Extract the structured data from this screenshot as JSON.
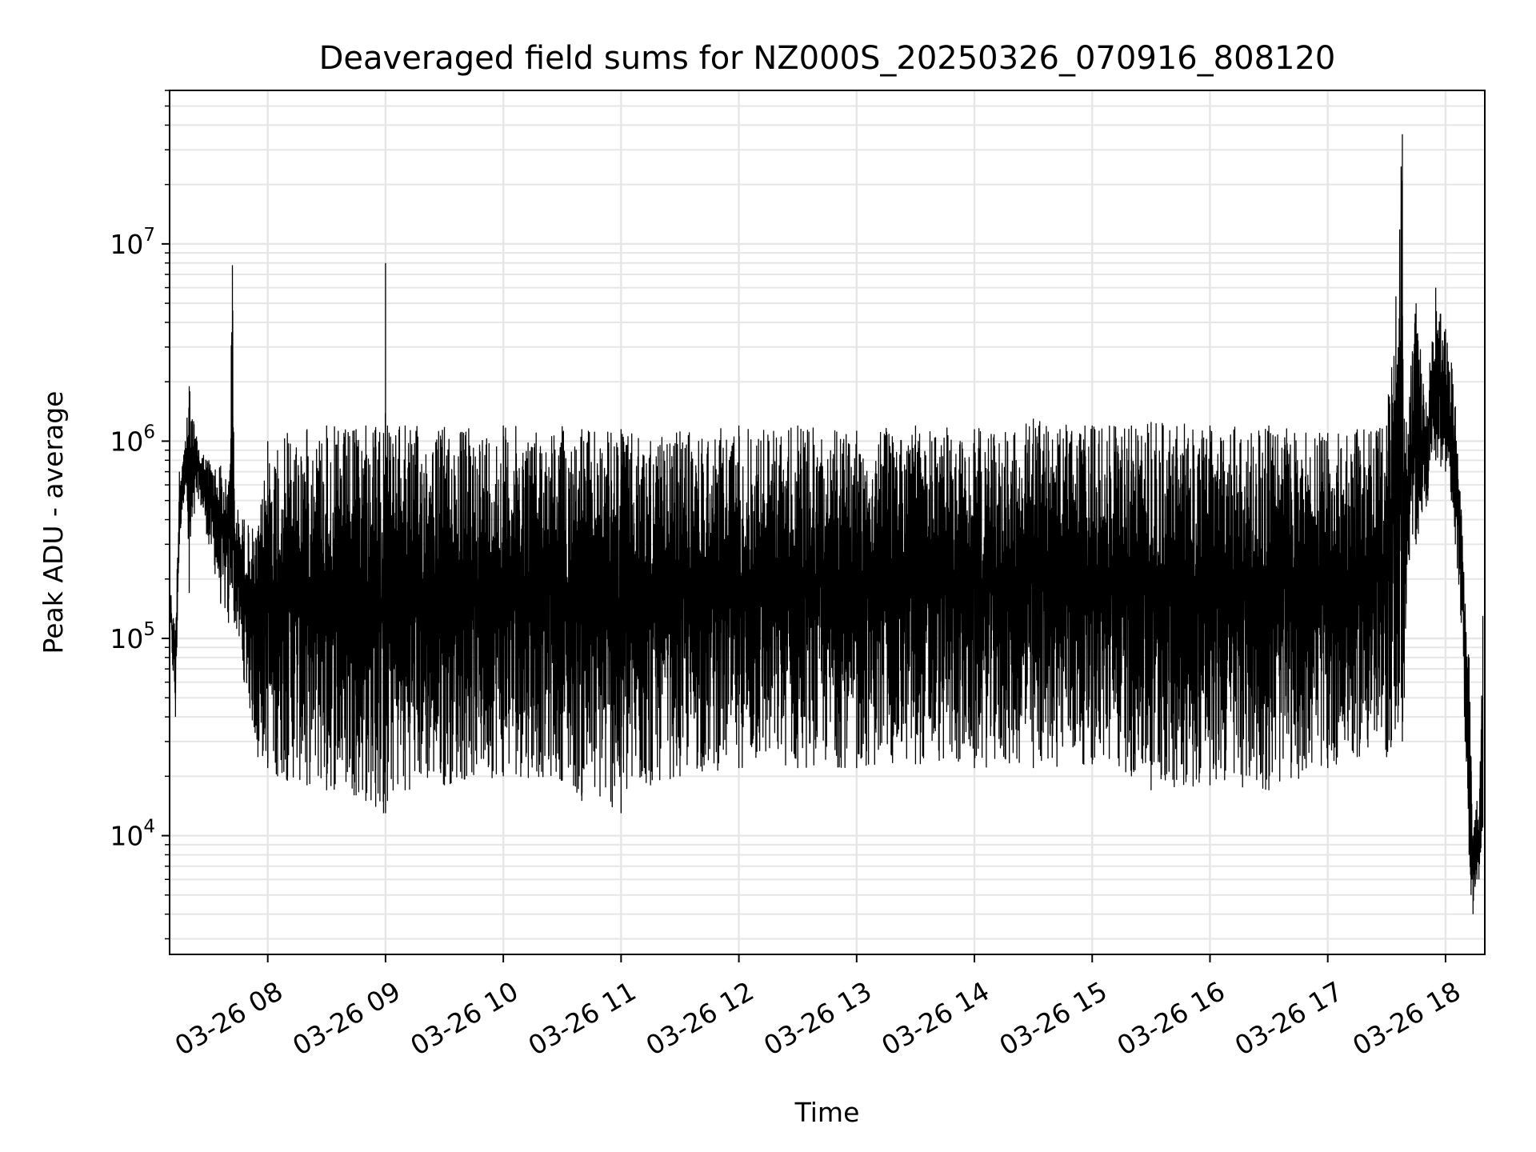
{
  "chart_data": {
    "type": "line",
    "title": "Deaveraged field sums for NZ000S_20250326_070916_808120",
    "xlabel": "Time",
    "ylabel": "Peak ADU - average",
    "yscale": "log",
    "xlim": [
      "2025-03-26 07:10",
      "2025-03-26 18:20"
    ],
    "ylim": [
      2500,
      60000000
    ],
    "grid": true,
    "line_color": "#000000",
    "x_tick_labels": [
      "03-26 08",
      "03-26 09",
      "03-26 10",
      "03-26 11",
      "03-26 12",
      "03-26 13",
      "03-26 14",
      "03-26 15",
      "03-26 16",
      "03-26 17",
      "03-26 18"
    ],
    "y_tick_labels": [
      {
        "base": "10",
        "exp": "4",
        "value": 10000
      },
      {
        "base": "10",
        "exp": "5",
        "value": 100000
      },
      {
        "base": "10",
        "exp": "6",
        "value": 1000000
      },
      {
        "base": "10",
        "exp": "7",
        "value": 10000000
      }
    ],
    "series": [
      {
        "x": [
          "07:10",
          "07:13",
          "07:15",
          "07:18",
          "07:20",
          "07:24",
          "07:30",
          "07:36",
          "07:40",
          "07:42",
          "07:43",
          "07:48",
          "07:55",
          "08:00",
          "08:05",
          "08:10",
          "08:20",
          "08:30",
          "08:45",
          "08:50",
          "08:55",
          "08:59",
          "09:00",
          "09:01",
          "09:10",
          "09:30",
          "10:00",
          "10:30",
          "10:40",
          "11:00",
          "11:15",
          "11:30",
          "12:00",
          "12:30",
          "13:00",
          "13:30",
          "14:00",
          "14:30",
          "15:00",
          "15:20",
          "15:30",
          "16:00",
          "16:30",
          "17:00",
          "17:15",
          "17:30",
          "17:38",
          "17:39",
          "17:40",
          "17:45",
          "17:51",
          "17:52",
          "17:55",
          "18:00",
          "18:03",
          "18:05",
          "18:08",
          "18:10",
          "18:12",
          "18:13",
          "18:14",
          "18:15",
          "18:16",
          "18:17",
          "18:19"
        ],
        "upper": [
          200000,
          110000,
          700000,
          1000000,
          1900000,
          1000000,
          800000,
          750000,
          600000,
          7800000,
          500000,
          400000,
          350000,
          1000000,
          900000,
          1100000,
          1150000,
          1200000,
          1150000,
          1200000,
          1180000,
          1100000,
          8000000,
          1200000,
          1200000,
          1180000,
          1200000,
          1190000,
          1150000,
          1150000,
          1000000,
          1120000,
          1200000,
          1200000,
          1130000,
          1200000,
          1150000,
          1300000,
          1200000,
          1200000,
          1250000,
          1200000,
          1200000,
          1100000,
          1150000,
          1200000,
          36000000,
          1300000,
          1250000,
          5000000,
          1300000,
          2500000,
          6000000,
          3700000,
          2500000,
          1500000,
          450000,
          150000,
          80000,
          25000,
          10000,
          12000,
          15000,
          10000,
          130000
        ],
        "lower": [
          120000,
          40000,
          300000,
          600000,
          170000,
          550000,
          300000,
          150000,
          120000,
          180000,
          120000,
          60000,
          25000,
          22000,
          20000,
          19000,
          18000,
          17000,
          16000,
          15000,
          14000,
          13000,
          13000,
          15000,
          17000,
          18000,
          20000,
          19000,
          15000,
          13000,
          18000,
          20000,
          22000,
          22000,
          22000,
          23000,
          22000,
          22000,
          23000,
          20000,
          17000,
          18000,
          17000,
          22000,
          25000,
          25000,
          30000,
          50000,
          150000,
          300000,
          500000,
          800000,
          800000,
          700000,
          500000,
          300000,
          120000,
          30000,
          8000,
          5000,
          4000,
          5500,
          6000,
          6000,
          11000
        ]
      }
    ]
  }
}
